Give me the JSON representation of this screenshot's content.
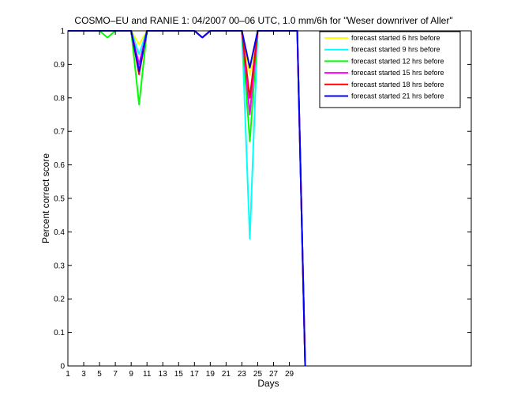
{
  "chart_data": {
    "type": "line",
    "title": "COSMO–EU and RANIE 1: 04/2007 00–06 UTC, 1.0 mm/6h for \"Weser downriver of Aller\"",
    "xlabel": "Days",
    "ylabel": "Percent correct score",
    "xlim": [
      1,
      52
    ],
    "ylim": [
      0,
      1
    ],
    "xticks": [
      1,
      3,
      5,
      7,
      9,
      11,
      13,
      15,
      17,
      19,
      21,
      23,
      25,
      27,
      29
    ],
    "yticks": [
      0,
      0.1,
      0.2,
      0.3,
      0.4,
      0.5,
      0.6,
      0.7,
      0.8,
      0.9,
      1
    ],
    "grid": false,
    "legend_position": "top-right",
    "x": [
      1,
      2,
      3,
      4,
      5,
      6,
      7,
      8,
      9,
      10,
      11,
      12,
      13,
      14,
      15,
      16,
      17,
      18,
      19,
      20,
      21,
      22,
      23,
      24,
      25,
      26,
      27,
      28,
      29,
      30,
      31
    ],
    "series": [
      {
        "name": "forecast started 6 hrs before",
        "color": "#ffff00",
        "values": [
          1,
          1,
          1,
          1,
          1,
          1,
          1,
          1,
          1,
          0.96,
          1,
          1,
          1,
          1,
          1,
          1,
          1,
          0.98,
          1,
          1,
          1,
          1,
          1,
          0.87,
          1,
          1,
          1,
          1,
          1,
          1,
          0
        ]
      },
      {
        "name": "forecast started 9 hrs before",
        "color": "#00ffff",
        "values": [
          1,
          1,
          1,
          1,
          1,
          1,
          1,
          1,
          1,
          0.93,
          1,
          1,
          1,
          1,
          1,
          1,
          1,
          0.98,
          1,
          1,
          1,
          1,
          1,
          0.38,
          1,
          1,
          1,
          1,
          1,
          1,
          0
        ]
      },
      {
        "name": "forecast started 12 hrs before",
        "color": "#00ff00",
        "values": [
          1,
          1,
          1,
          1,
          1,
          0.98,
          1,
          1,
          1,
          0.78,
          1,
          1,
          1,
          1,
          1,
          1,
          1,
          0.98,
          1,
          1,
          1,
          1,
          1,
          0.67,
          1,
          1,
          1,
          1,
          1,
          1,
          0
        ]
      },
      {
        "name": "forecast started 15 hrs before",
        "color": "#ff00ff",
        "values": [
          1,
          1,
          1,
          1,
          1,
          1,
          1,
          1,
          1,
          0.9,
          1,
          1,
          1,
          1,
          1,
          1,
          1,
          0.98,
          1,
          1,
          1,
          1,
          1,
          0.75,
          1,
          1,
          1,
          1,
          1,
          1,
          0
        ]
      },
      {
        "name": "forecast started 18 hrs before",
        "color": "#ff0000",
        "values": [
          1,
          1,
          1,
          1,
          1,
          1,
          1,
          1,
          1,
          0.87,
          1,
          1,
          1,
          1,
          1,
          1,
          1,
          0.98,
          1,
          1,
          1,
          1,
          1,
          0.8,
          1,
          1,
          1,
          1,
          1,
          1,
          0
        ]
      },
      {
        "name": "forecast started 21 hrs before",
        "color": "#0000ff",
        "values": [
          1,
          1,
          1,
          1,
          1,
          1,
          1,
          1,
          1,
          0.88,
          1,
          1,
          1,
          1,
          1,
          1,
          1,
          0.98,
          1,
          1,
          1,
          1,
          1,
          0.89,
          1,
          1,
          1,
          1,
          1,
          1,
          0
        ]
      }
    ]
  }
}
